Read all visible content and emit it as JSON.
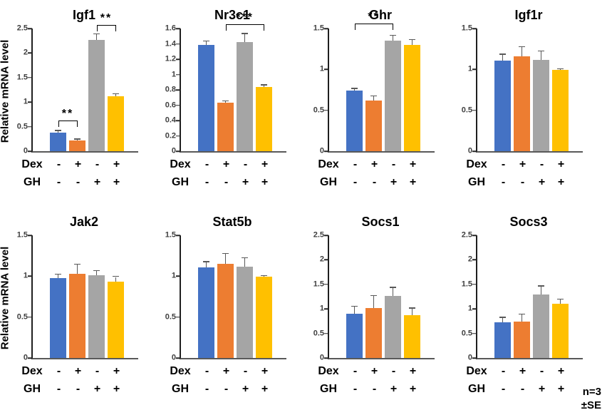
{
  "figure": {
    "ylabel": "Relative mRNA level",
    "row_labels": [
      "Dex",
      "GH"
    ],
    "dex": [
      "-",
      "+",
      "-",
      "+"
    ],
    "gh": [
      "-",
      "-",
      "+",
      "+"
    ],
    "note_n": "n=3",
    "note_se": "±SE",
    "colors": {
      "bars": [
        "#4472C4",
        "#ED7D31",
        "#A5A5A5",
        "#FFC000"
      ],
      "error": "#595959",
      "axis": "#1f1f1f",
      "baseline": "#595959",
      "bracket": "#000000"
    }
  },
  "chart_data": [
    {
      "type": "bar",
      "title": "Igf1",
      "ylabel": "Relative mRNA level",
      "xlabel": "",
      "ylim": [
        0,
        2.5
      ],
      "yticks": [
        0,
        0.5,
        1,
        1.5,
        2,
        2.5
      ],
      "ytick_labels": [
        "0",
        "0.5",
        "1",
        "1.5",
        "2",
        "2.5"
      ],
      "values": [
        0.38,
        0.22,
        2.27,
        1.12
      ],
      "errors": [
        0.03,
        0.02,
        0.11,
        0.04
      ],
      "significance": [
        {
          "from": 0,
          "to": 1,
          "y": 0.63,
          "stars": "**"
        },
        {
          "from": 2,
          "to": 3,
          "y": 2.58,
          "stars": "**"
        }
      ]
    },
    {
      "type": "bar",
      "title": "Nr3c1",
      "ylabel": "Relative mRNA level",
      "xlabel": "",
      "ylim": [
        0,
        1.6
      ],
      "yticks": [
        0,
        0.2,
        0.4,
        0.6,
        0.8,
        1,
        1.2,
        1.4,
        1.6
      ],
      "ytick_labels": [
        "0",
        "0.2",
        "0.4",
        "0.6",
        "0.8",
        "1",
        "1.2",
        "1.4",
        "1.6"
      ],
      "values": [
        1.39,
        0.63,
        1.42,
        0.84
      ],
      "errors": [
        0.04,
        0.02,
        0.11,
        0.02
      ],
      "significance": [
        {
          "from": 1,
          "to": 3,
          "y": 1.66,
          "stars": "***"
        }
      ]
    },
    {
      "type": "bar",
      "title": "Ghr",
      "ylabel": "Relative mRNA level",
      "xlabel": "",
      "ylim": [
        0,
        1.5
      ],
      "yticks": [
        0,
        0.5,
        1,
        1.5
      ],
      "ytick_labels": [
        "0",
        "0.5",
        "1",
        "1.5"
      ],
      "values": [
        0.74,
        0.62,
        1.35,
        1.3
      ],
      "errors": [
        0.02,
        0.05,
        0.06,
        0.06
      ],
      "significance": [
        {
          "from": 0,
          "to": 2,
          "y": 1.56,
          "stars": "**"
        }
      ]
    },
    {
      "type": "bar",
      "title": "Igf1r",
      "ylabel": "Relative mRNA level",
      "xlabel": "",
      "ylim": [
        0,
        1.5
      ],
      "yticks": [
        0,
        0.5,
        1,
        1.5
      ],
      "ytick_labels": [
        "0",
        "0.5",
        "1",
        "1.5"
      ],
      "values": [
        1.11,
        1.16,
        1.12,
        0.99
      ],
      "errors": [
        0.07,
        0.11,
        0.1,
        0.01
      ],
      "significance": []
    },
    {
      "type": "bar",
      "title": "Jak2",
      "ylabel": "Relative mRNA level",
      "xlabel": "",
      "ylim": [
        0,
        1.5
      ],
      "yticks": [
        0,
        0.5,
        1,
        1.5
      ],
      "ytick_labels": [
        "0",
        "0.5",
        "1",
        "1.5"
      ],
      "values": [
        0.98,
        1.03,
        1.01,
        0.93
      ],
      "errors": [
        0.04,
        0.11,
        0.05,
        0.06
      ],
      "significance": []
    },
    {
      "type": "bar",
      "title": "Stat5b",
      "ylabel": "Relative mRNA level",
      "xlabel": "",
      "ylim": [
        0,
        1.5
      ],
      "yticks": [
        0,
        0.5,
        1,
        1.5
      ],
      "ytick_labels": [
        "0",
        "0.5",
        "1",
        "1.5"
      ],
      "values": [
        1.11,
        1.15,
        1.12,
        0.99
      ],
      "errors": [
        0.06,
        0.12,
        0.1,
        0.01
      ],
      "significance": []
    },
    {
      "type": "bar",
      "title": "Socs1",
      "ylabel": "Relative mRNA level",
      "xlabel": "",
      "ylim": [
        0,
        2.5
      ],
      "yticks": [
        0,
        0.5,
        1,
        1.5,
        2,
        2.5
      ],
      "ytick_labels": [
        "0",
        "0.5",
        "1",
        "1.5",
        "2",
        "2.5"
      ],
      "values": [
        0.9,
        1.02,
        1.27,
        0.87
      ],
      "errors": [
        0.14,
        0.24,
        0.16,
        0.14
      ],
      "significance": []
    },
    {
      "type": "bar",
      "title": "Socs3",
      "ylabel": "Relative mRNA level",
      "xlabel": "",
      "ylim": [
        0,
        2.5
      ],
      "yticks": [
        0,
        0.5,
        1,
        1.5,
        2,
        2.5
      ],
      "ytick_labels": [
        "0",
        "0.5",
        "1",
        "1.5",
        "2",
        "2.5"
      ],
      "values": [
        0.72,
        0.74,
        1.29,
        1.1
      ],
      "errors": [
        0.1,
        0.14,
        0.17,
        0.09
      ],
      "significance": []
    }
  ]
}
